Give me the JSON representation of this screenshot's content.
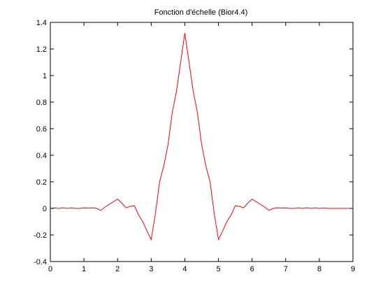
{
  "chart_data": {
    "type": "line",
    "title": "Fonction d'échelle (Bior4.4)",
    "xlabel": "",
    "ylabel": "",
    "xlim": [
      0,
      9
    ],
    "ylim": [
      -0.4,
      1.4
    ],
    "xticks": [
      "0",
      "1",
      "2",
      "3",
      "4",
      "5",
      "6",
      "7",
      "8",
      "9"
    ],
    "yticks": [
      "-0.4",
      "-0.2",
      "0",
      "0.2",
      "0.4",
      "0.6",
      "0.8",
      "1",
      "1.2",
      "1.4"
    ],
    "grid": false,
    "series": [
      {
        "color": "#ff0000",
        "x": [
          0,
          0.125,
          0.25,
          0.375,
          0.5,
          0.625,
          0.75,
          0.875,
          1.0,
          1.125,
          1.25,
          1.375,
          1.5,
          1.625,
          1.75,
          1.875,
          2.0,
          2.125,
          2.25,
          2.375,
          2.5,
          2.625,
          2.75,
          2.875,
          3.0,
          3.125,
          3.25,
          3.375,
          3.5,
          3.625,
          3.75,
          3.875,
          4.0,
          4.125,
          4.25,
          4.375,
          4.5,
          4.625,
          4.75,
          4.875,
          5.0,
          5.125,
          5.25,
          5.375,
          5.5,
          5.625,
          5.75,
          5.875,
          6.0,
          6.125,
          6.25,
          6.375,
          6.5,
          6.625,
          6.75,
          6.875,
          7.0,
          7.125,
          7.25,
          7.375,
          7.5,
          7.625,
          7.75,
          7.875,
          8.0,
          8.125,
          8.25,
          8.5,
          9.0
        ],
        "y": [
          0.0,
          0.003,
          0.0,
          0.004,
          0.0,
          0.003,
          0.0,
          0.0,
          0.003,
          0.002,
          0.004,
          0.0,
          -0.015,
          0.01,
          0.03,
          0.05,
          0.07,
          0.04,
          0.005,
          0.015,
          0.02,
          -0.05,
          -0.1,
          -0.17,
          -0.235,
          -0.04,
          0.2,
          0.32,
          0.48,
          0.72,
          0.88,
          1.1,
          1.32,
          1.1,
          0.88,
          0.72,
          0.48,
          0.32,
          0.2,
          -0.04,
          -0.235,
          -0.17,
          -0.1,
          -0.05,
          0.02,
          0.015,
          0.005,
          0.04,
          0.07,
          0.05,
          0.03,
          0.01,
          -0.015,
          0.0,
          0.004,
          0.002,
          0.003,
          0.0,
          0.0,
          0.003,
          0.0,
          0.004,
          0.0,
          0.003,
          0.0,
          0.002,
          0.0,
          0.0,
          0.0
        ]
      }
    ]
  }
}
